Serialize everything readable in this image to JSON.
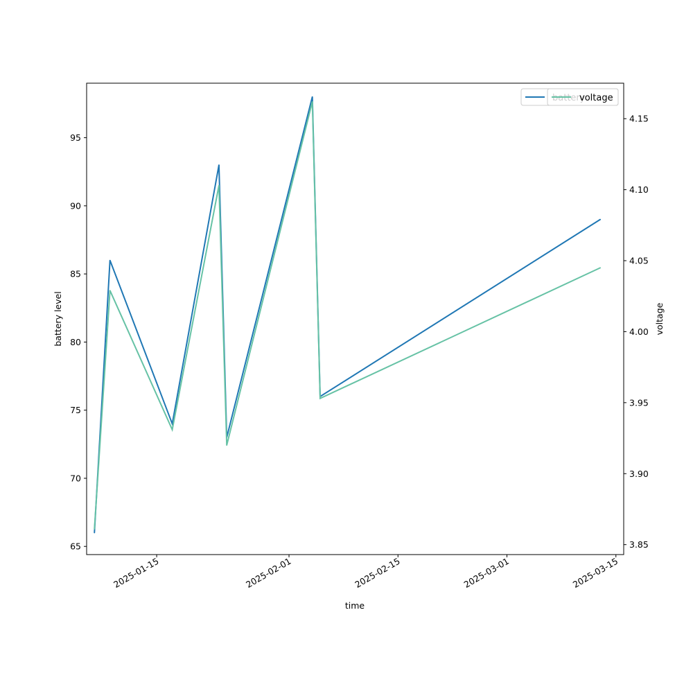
{
  "chart_data": {
    "type": "line",
    "title": "",
    "xlabel": "time",
    "ylabel": "battery level",
    "y2label": "voltage",
    "x": [
      "2025-01-07",
      "2025-01-09",
      "2025-01-17",
      "2025-01-23",
      "2025-01-24",
      "2025-02-04",
      "2025-02-05",
      "2025-03-13"
    ],
    "xlim": [
      "2025-01-06",
      "2025-03-16"
    ],
    "xticks": [
      "2025-01-15",
      "2025-02-01",
      "2025-02-15",
      "2025-03-01",
      "2025-03-15"
    ],
    "ylim": [
      64.4,
      99.0
    ],
    "yticks": [
      65,
      70,
      75,
      80,
      85,
      90,
      95
    ],
    "y2lim": [
      3.843,
      4.175
    ],
    "y2ticks": [
      "3.85",
      "3.90",
      "3.95",
      "4.00",
      "4.05",
      "4.10",
      "4.15"
    ],
    "series": [
      {
        "name": "battery",
        "axis": "left",
        "color": "#1f77b4",
        "values": [
          66,
          86,
          74,
          93,
          73,
          98,
          76,
          89
        ]
      },
      {
        "name": "voltage",
        "axis": "right",
        "color": "#66c2a5",
        "values": [
          3.861,
          4.029,
          3.931,
          4.103,
          3.92,
          4.162,
          3.953,
          4.045
        ]
      }
    ],
    "grid": false,
    "legend_position": "top-right",
    "legend": {
      "left_axis_entry": "battery",
      "right_axis_entry": "voltage"
    }
  }
}
